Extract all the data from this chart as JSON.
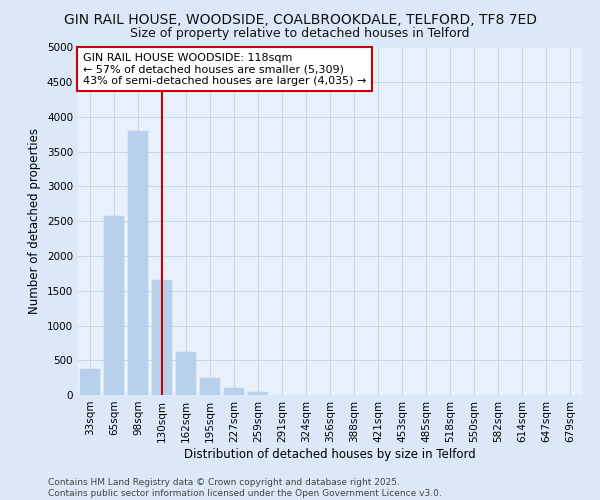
{
  "title": "GIN RAIL HOUSE, WOODSIDE, COALBROOKDALE, TELFORD, TF8 7ED",
  "subtitle": "Size of property relative to detached houses in Telford",
  "xlabel": "Distribution of detached houses by size in Telford",
  "ylabel": "Number of detached properties",
  "categories": [
    "33sqm",
    "65sqm",
    "98sqm",
    "130sqm",
    "162sqm",
    "195sqm",
    "227sqm",
    "259sqm",
    "291sqm",
    "324sqm",
    "356sqm",
    "388sqm",
    "421sqm",
    "453sqm",
    "485sqm",
    "518sqm",
    "550sqm",
    "582sqm",
    "614sqm",
    "647sqm",
    "679sqm"
  ],
  "values": [
    380,
    2580,
    3800,
    1650,
    620,
    240,
    100,
    50,
    0,
    0,
    0,
    0,
    0,
    0,
    0,
    0,
    0,
    0,
    0,
    0,
    0
  ],
  "bar_color": "#b8d0eb",
  "bar_edge_color": "#b8d0eb",
  "vline_color": "#cc0000",
  "vline_x_index": 3,
  "annotation_line1": "GIN RAIL HOUSE WOODSIDE: 118sqm",
  "annotation_line2": "← 57% of detached houses are smaller (5,309)",
  "annotation_line3": "43% of semi-detached houses are larger (4,035) →",
  "box_facecolor": "#ffffff",
  "box_edgecolor": "#cc0000",
  "ylim": [
    0,
    5000
  ],
  "yticks": [
    0,
    500,
    1000,
    1500,
    2000,
    2500,
    3000,
    3500,
    4000,
    4500,
    5000
  ],
  "footer_line1": "Contains HM Land Registry data © Crown copyright and database right 2025.",
  "footer_line2": "Contains public sector information licensed under the Open Government Licence v3.0.",
  "fig_bg_color": "#dce8f8",
  "plot_bg_color": "#e8f0fc",
  "title_fontsize": 10,
  "subtitle_fontsize": 9,
  "axis_label_fontsize": 8.5,
  "tick_fontsize": 7.5,
  "annotation_fontsize": 8,
  "footer_fontsize": 6.5,
  "grid_color": "#c8d8e8"
}
